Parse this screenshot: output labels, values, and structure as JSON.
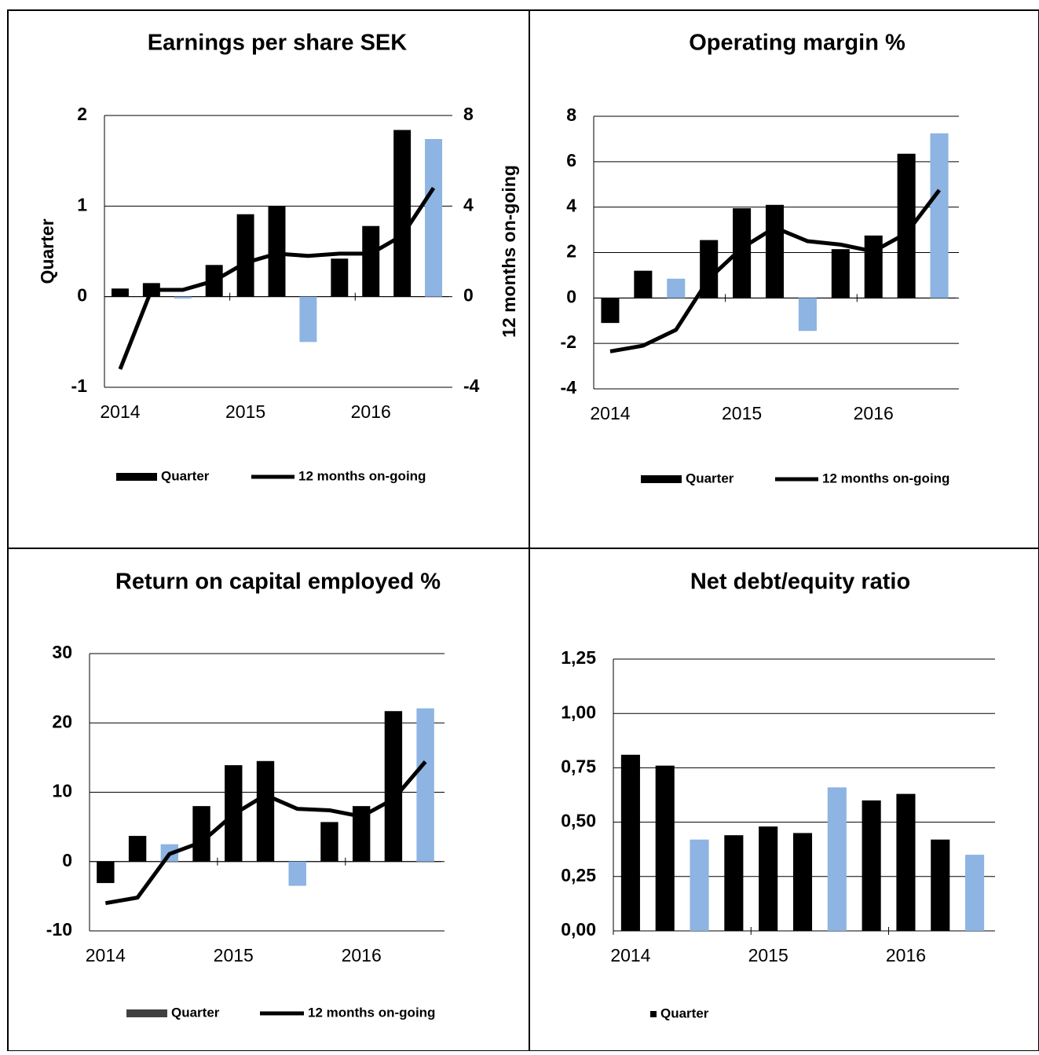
{
  "chart_data": [
    {
      "type": "bar",
      "title": "Earnings per share SEK",
      "ylabel": "Quarter",
      "y2label": "12 months on-going",
      "categories": [
        "2014",
        null,
        null,
        null,
        "2015",
        null,
        null,
        null,
        "2016",
        null,
        null
      ],
      "series": [
        {
          "name": "Quarter",
          "color": "#000000",
          "colors": [
            "#000000",
            "#000000",
            "#8db4e2",
            "#000000",
            "#000000",
            "#000000",
            "#8db4e2",
            "#000000",
            "#000000",
            "#000000",
            "#8db4e2"
          ],
          "values": [
            0.09,
            0.15,
            -0.02,
            0.35,
            0.91,
            1.0,
            -0.5,
            0.42,
            0.78,
            1.84,
            1.74
          ]
        },
        {
          "name": "12 months on-going",
          "type": "line",
          "axis": "y2",
          "color": "#000000",
          "values": [
            -3.2,
            0.3,
            0.3,
            0.7,
            1.5,
            1.9,
            1.8,
            1.9,
            1.9,
            2.7,
            4.8
          ]
        }
      ],
      "ylim": [
        -1,
        2
      ],
      "yticks": [
        -1,
        0,
        1,
        2
      ],
      "y2lim": [
        -4,
        8
      ],
      "y2ticks": [
        -4,
        0,
        4,
        8
      ],
      "grid": true
    },
    {
      "type": "bar",
      "title": "Operating margin %",
      "categories": [
        "2014",
        null,
        null,
        null,
        "2015",
        null,
        null,
        null,
        "2016",
        null,
        null
      ],
      "series": [
        {
          "name": "Quarter",
          "color": "#000000",
          "colors": [
            "#000000",
            "#000000",
            "#8db4e2",
            "#000000",
            "#000000",
            "#000000",
            "#8db4e2",
            "#000000",
            "#000000",
            "#000000",
            "#8db4e2"
          ],
          "values": [
            -1.1,
            1.2,
            0.85,
            2.55,
            3.95,
            4.1,
            -1.45,
            2.15,
            2.75,
            6.35,
            7.25
          ]
        },
        {
          "name": "12 months on-going",
          "type": "line",
          "color": "#000000",
          "values": [
            -2.35,
            -2.1,
            -1.4,
            0.85,
            2.2,
            3.1,
            2.5,
            2.35,
            2.05,
            2.85,
            4.75
          ]
        }
      ],
      "ylim": [
        -4,
        8
      ],
      "yticks": [
        -4,
        -2,
        0,
        2,
        4,
        6,
        8
      ],
      "grid": true
    },
    {
      "type": "bar",
      "title": "Return on capital employed %",
      "categories": [
        "2014",
        null,
        null,
        null,
        "2015",
        null,
        null,
        null,
        "2016",
        null,
        null
      ],
      "series": [
        {
          "name": "Quarter",
          "color": "#404040",
          "colors": [
            "#000000",
            "#000000",
            "#8db4e2",
            "#000000",
            "#000000",
            "#000000",
            "#8db4e2",
            "#000000",
            "#000000",
            "#000000",
            "#8db4e2"
          ],
          "values": [
            -3.1,
            3.7,
            2.5,
            8.0,
            13.9,
            14.5,
            -3.5,
            5.7,
            8.0,
            21.7,
            22.1
          ]
        },
        {
          "name": "12 months on-going",
          "type": "line",
          "color": "#000000",
          "values": [
            -6.0,
            -5.2,
            1.1,
            2.8,
            6.8,
            9.6,
            7.6,
            7.4,
            6.5,
            9.0,
            14.4
          ]
        }
      ],
      "ylim": [
        -10,
        30
      ],
      "yticks": [
        -10,
        0,
        10,
        20,
        30
      ],
      "grid": true
    },
    {
      "type": "bar",
      "title": "Net debt/equity  ratio",
      "categories": [
        "2014",
        null,
        null,
        null,
        "2015",
        null,
        null,
        null,
        "2016",
        null,
        null
      ],
      "series": [
        {
          "name": "Quarter",
          "color": "#000000",
          "colors": [
            "#000000",
            "#000000",
            "#8db4e2",
            "#000000",
            "#000000",
            "#000000",
            "#8db4e2",
            "#000000",
            "#000000",
            "#000000",
            "#8db4e2"
          ],
          "values": [
            0.81,
            0.76,
            0.42,
            0.44,
            0.48,
            0.45,
            0.66,
            0.6,
            0.63,
            0.42,
            0.35
          ]
        }
      ],
      "ylim": [
        0,
        1.25
      ],
      "yticks": [
        {
          "value": 0,
          "label": "0,00"
        },
        {
          "value": 0.25,
          "label": "0,25"
        },
        {
          "value": 0.5,
          "label": "0,50"
        },
        {
          "value": 0.75,
          "label": "0,75"
        },
        {
          "value": 1,
          "label": "1,00"
        },
        {
          "value": 1.25,
          "label": "1,25"
        }
      ],
      "grid": true
    }
  ]
}
